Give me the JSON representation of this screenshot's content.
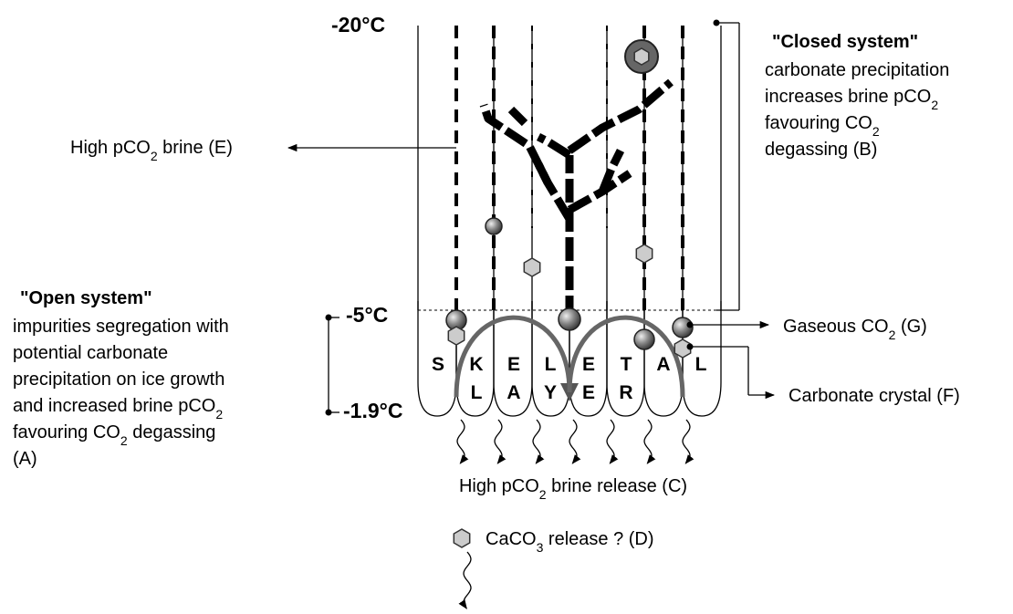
{
  "temperatures": {
    "top": "-20°C",
    "middle": "-5°C",
    "bottom": "-1.9°C"
  },
  "labels": {
    "open_system": {
      "title": "\"Open system\"",
      "lines": [
        [
          "impurities segregation with"
        ],
        [
          "potential carbonate"
        ],
        [
          "precipitation on ice growth"
        ],
        [
          "and increased brine pCO",
          {
            "text": "2",
            "sub": true
          }
        ],
        [
          "favouring CO",
          {
            "text": "2",
            "sub": true
          },
          " degassing"
        ],
        [
          "(A)"
        ]
      ]
    },
    "closed_system": {
      "title": "\"Closed system\"",
      "lines": [
        [
          "carbonate precipitation"
        ],
        [
          "increases brine pCO",
          {
            "text": "2",
            "sub": true
          }
        ],
        [
          "favouring CO",
          {
            "text": "2",
            "sub": true
          }
        ],
        [
          "degassing (B)"
        ]
      ]
    },
    "brine_e": {
      "lines": [
        [
          "High pCO",
          {
            "text": "2",
            "sub": true
          },
          " brine (E)"
        ]
      ]
    },
    "brine_release_c": {
      "lines": [
        [
          "High pCO",
          {
            "text": "2",
            "sub": true
          },
          " brine release (C)"
        ]
      ]
    },
    "caco3_release_d": {
      "lines": [
        [
          "CaCO",
          {
            "text": "3",
            "sub": true
          },
          " release ? (D)"
        ]
      ]
    },
    "gaseous_co2_g": {
      "lines": [
        [
          "Gaseous  CO",
          {
            "text": "2",
            "sub": true
          },
          " (G)"
        ]
      ]
    },
    "carbonate_crystal_f": {
      "lines": [
        [
          "Carbonate crystal (F)"
        ]
      ]
    }
  },
  "layer_letters": {
    "top": [
      "S",
      "K",
      "E",
      "L",
      "E",
      "T",
      "A",
      "L"
    ],
    "bottom": [
      "L",
      "A",
      "Y",
      "E",
      "R"
    ]
  }
}
